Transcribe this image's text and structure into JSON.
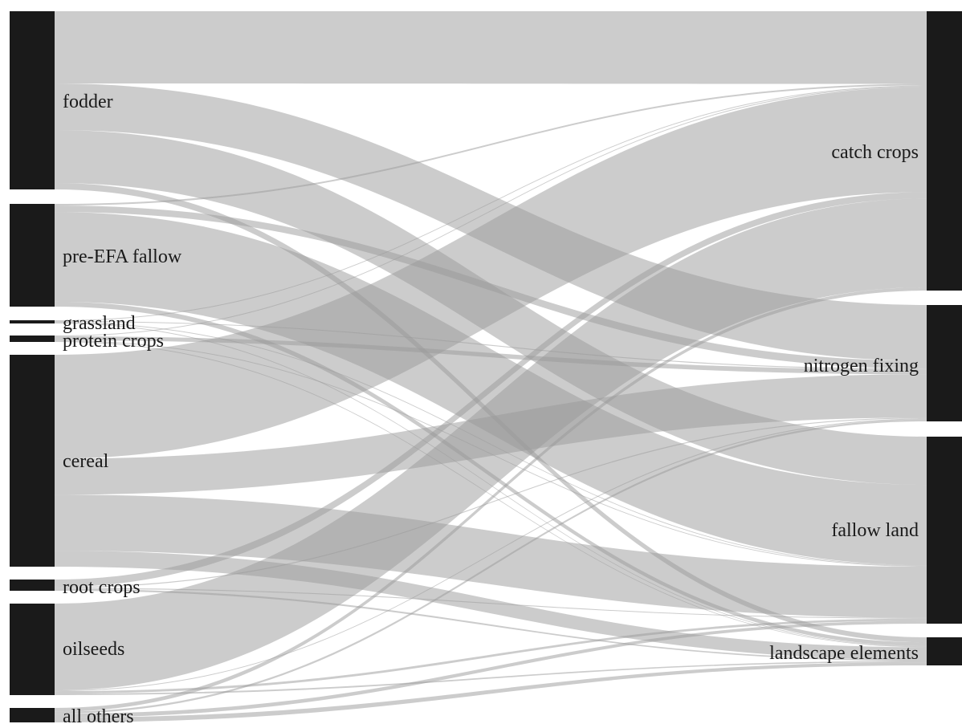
{
  "diagram": {
    "type": "sankey",
    "sources": [
      {
        "id": "fodder",
        "label": "fodder"
      },
      {
        "id": "prefallow",
        "label": "pre-EFA fallow"
      },
      {
        "id": "grassland",
        "label": "grassland"
      },
      {
        "id": "protein",
        "label": "protein crops"
      },
      {
        "id": "cereal",
        "label": "cereal"
      },
      {
        "id": "root",
        "label": "root crops"
      },
      {
        "id": "oilseeds",
        "label": "oilseeds"
      },
      {
        "id": "others",
        "label": "all others"
      }
    ],
    "targets": [
      {
        "id": "catch",
        "label": "catch crops"
      },
      {
        "id": "nitrogen",
        "label": "nitrogen fixing"
      },
      {
        "id": "fallow",
        "label": "fallow land"
      },
      {
        "id": "landscape",
        "label": "landscape elements"
      }
    ],
    "flows": [
      {
        "from": "fodder",
        "to": "catch",
        "value": 90
      },
      {
        "from": "fodder",
        "to": "nitrogen",
        "value": 58
      },
      {
        "from": "fodder",
        "to": "fallow",
        "value": 66
      },
      {
        "from": "fodder",
        "to": "landscape",
        "value": 8
      },
      {
        "from": "prefallow",
        "to": "catch",
        "value": 2
      },
      {
        "from": "prefallow",
        "to": "nitrogen",
        "value": 8
      },
      {
        "from": "prefallow",
        "to": "fallow",
        "value": 110
      },
      {
        "from": "prefallow",
        "to": "landscape",
        "value": 6
      },
      {
        "from": "grassland",
        "to": "catch",
        "value": 1
      },
      {
        "from": "grassland",
        "to": "nitrogen",
        "value": 1
      },
      {
        "from": "grassland",
        "to": "fallow",
        "value": 1
      },
      {
        "from": "grassland",
        "to": "landscape",
        "value": 1
      },
      {
        "from": "protein",
        "to": "catch",
        "value": 1
      },
      {
        "from": "protein",
        "to": "nitrogen",
        "value": 5
      },
      {
        "from": "protein",
        "to": "fallow",
        "value": 1
      },
      {
        "from": "protein",
        "to": "landscape",
        "value": 1
      },
      {
        "from": "cereal",
        "to": "catch",
        "value": 130
      },
      {
        "from": "cereal",
        "to": "nitrogen",
        "value": 45
      },
      {
        "from": "cereal",
        "to": "fallow",
        "value": 70
      },
      {
        "from": "cereal",
        "to": "landscape",
        "value": 20
      },
      {
        "from": "root",
        "to": "catch",
        "value": 8
      },
      {
        "from": "root",
        "to": "nitrogen",
        "value": 1
      },
      {
        "from": "root",
        "to": "fallow",
        "value": 1
      },
      {
        "from": "root",
        "to": "landscape",
        "value": 2
      },
      {
        "from": "oilseeds",
        "to": "catch",
        "value": 110
      },
      {
        "from": "oilseeds",
        "to": "nitrogen",
        "value": 1
      },
      {
        "from": "oilseeds",
        "to": "fallow",
        "value": 3
      },
      {
        "from": "oilseeds",
        "to": "landscape",
        "value": 2
      },
      {
        "from": "others",
        "to": "catch",
        "value": 4
      },
      {
        "from": "others",
        "to": "nitrogen",
        "value": 2
      },
      {
        "from": "others",
        "to": "fallow",
        "value": 4
      },
      {
        "from": "others",
        "to": "landscape",
        "value": 5
      }
    ],
    "colors": {
      "node": "#1a1a1a",
      "flow": "#9a9a9a",
      "label": "#1a1a1a",
      "background": "#ffffff"
    }
  }
}
